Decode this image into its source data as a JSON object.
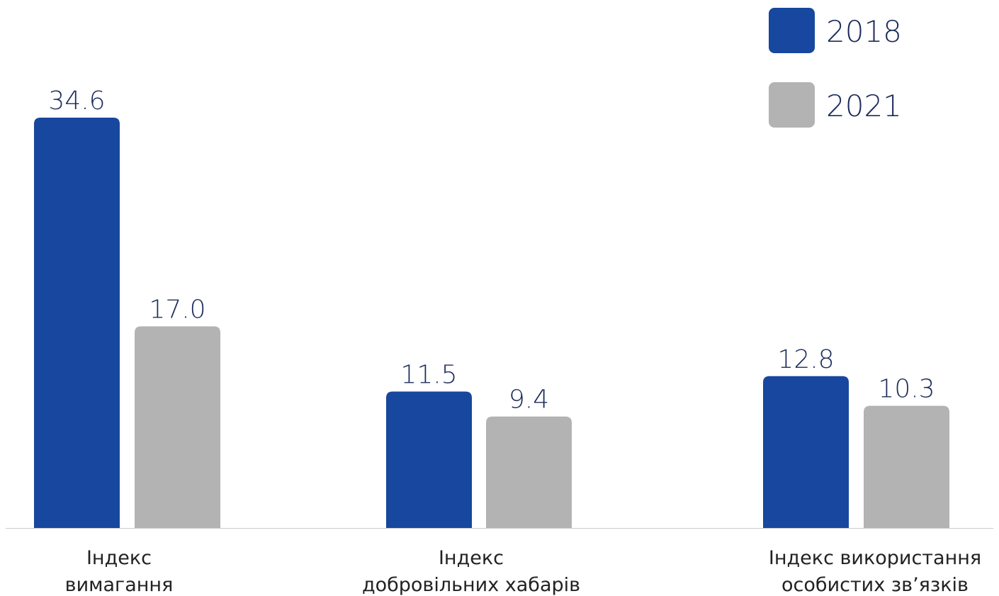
{
  "chart_data": {
    "type": "bar",
    "categories": [
      [
        "Індекс",
        "вимагання"
      ],
      [
        "Індекс",
        "добровільних хабарів"
      ],
      [
        "Індекс використання",
        "особистих зв’язків"
      ]
    ],
    "series": [
      {
        "name": "2018",
        "values": [
          34.6,
          11.5,
          12.8
        ],
        "value_labels": [
          "34.6",
          "11.5",
          "12.8"
        ],
        "color": "#17479e"
      },
      {
        "name": "2021",
        "values": [
          17.0,
          9.4,
          10.3
        ],
        "value_labels": [
          "17.0",
          "9.4",
          "10.3"
        ],
        "color": "#b3b3b3"
      }
    ],
    "ylim": [
      0,
      34.6
    ],
    "grid": false,
    "legend_position": "top-right",
    "label_color": "#1c2b5a",
    "axis_color": "#cccccc"
  }
}
